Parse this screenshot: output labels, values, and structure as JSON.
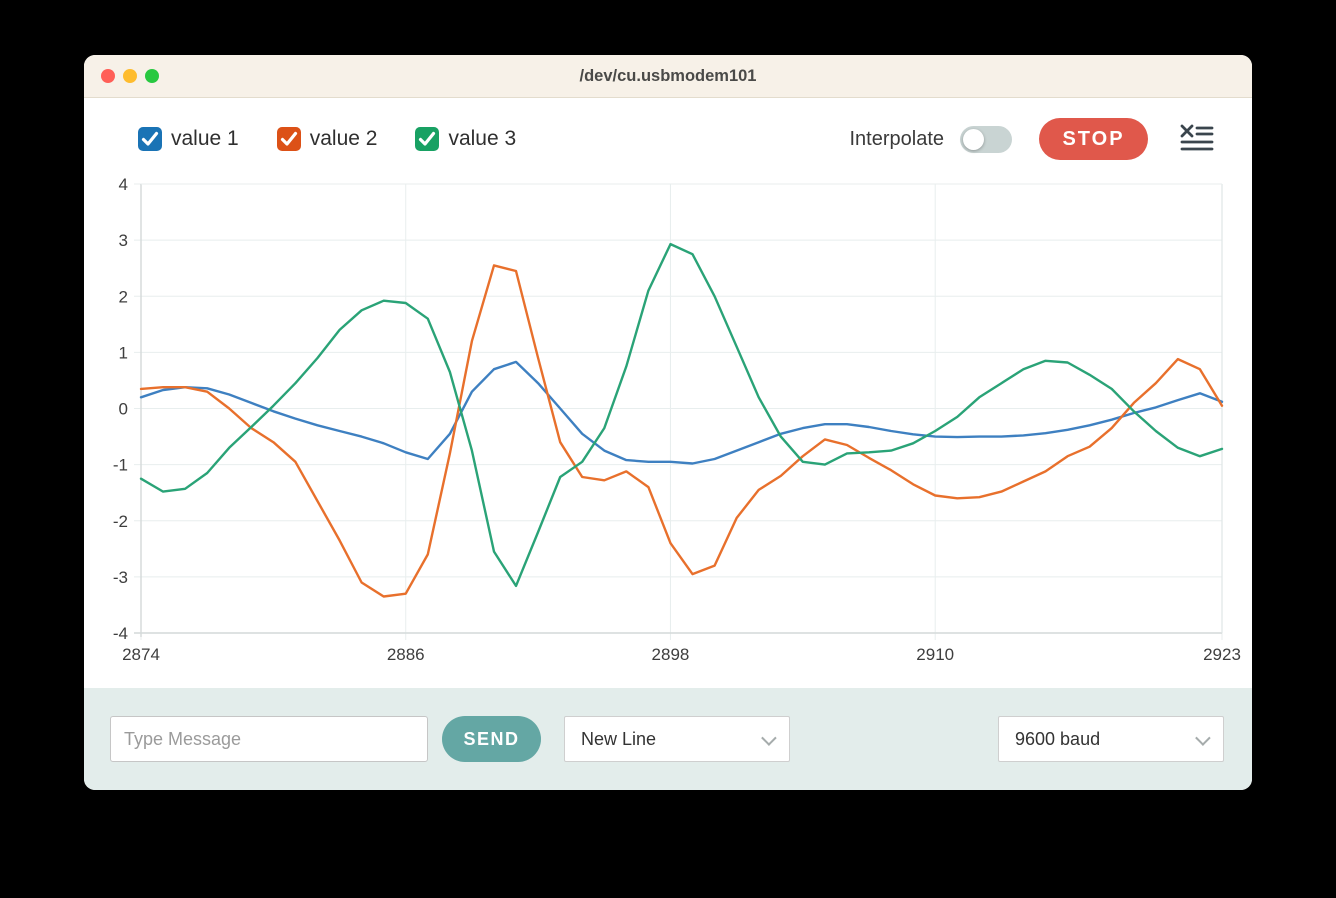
{
  "window": {
    "title": "/dev/cu.usbmodem101"
  },
  "titlebar_buttons": {
    "close": "close",
    "minimize": "minimize",
    "zoom": "zoom"
  },
  "legend": [
    {
      "label": "value 1",
      "checked": true,
      "color": "#1a73b5"
    },
    {
      "label": "value 2",
      "checked": true,
      "color": "#dc5117"
    },
    {
      "label": "value 3",
      "checked": true,
      "color": "#18a163"
    }
  ],
  "controls": {
    "interpolate_label": "Interpolate",
    "interpolate_on": false,
    "stop_label": "STOP",
    "clear_icon": "clear-console-icon"
  },
  "chart_data": {
    "type": "line",
    "title": "",
    "xlabel": "",
    "ylabel": "",
    "xlim": [
      2874,
      2923
    ],
    "ylim": [
      -4,
      4
    ],
    "x_ticks": [
      2874,
      2886,
      2898,
      2910,
      2923
    ],
    "y_ticks": [
      4,
      3,
      2,
      1,
      0,
      -1,
      -2,
      -3,
      -4
    ],
    "grid": true,
    "legend_position": "top-left",
    "x_start": 2874,
    "x_step": 1,
    "series": [
      {
        "name": "value 1",
        "color": "#3e80c1",
        "values": [
          0.2,
          0.33,
          0.38,
          0.36,
          0.25,
          0.1,
          -0.05,
          -0.18,
          -0.3,
          -0.4,
          -0.5,
          -0.62,
          -0.78,
          -0.9,
          -0.45,
          0.3,
          0.7,
          0.83,
          0.45,
          0.0,
          -0.45,
          -0.75,
          -0.92,
          -0.95,
          -0.95,
          -0.98,
          -0.9,
          -0.75,
          -0.6,
          -0.45,
          -0.35,
          -0.28,
          -0.28,
          -0.33,
          -0.4,
          -0.46,
          -0.5,
          -0.51,
          -0.5,
          -0.5,
          -0.48,
          -0.44,
          -0.38,
          -0.3,
          -0.2,
          -0.08,
          0.02,
          0.15,
          0.27,
          0.12
        ]
      },
      {
        "name": "value 2",
        "color": "#e8702c",
        "values": [
          0.35,
          0.38,
          0.38,
          0.3,
          0.0,
          -0.35,
          -0.6,
          -0.95,
          -1.65,
          -2.35,
          -3.1,
          -3.35,
          -3.3,
          -2.6,
          -0.8,
          1.2,
          2.55,
          2.45,
          0.9,
          -0.6,
          -1.22,
          -1.28,
          -1.12,
          -1.4,
          -2.4,
          -2.95,
          -2.8,
          -1.95,
          -1.45,
          -1.2,
          -0.85,
          -0.55,
          -0.65,
          -0.88,
          -1.1,
          -1.35,
          -1.55,
          -1.6,
          -1.58,
          -1.48,
          -1.3,
          -1.12,
          -0.85,
          -0.68,
          -0.35,
          0.1,
          0.45,
          0.88,
          0.7,
          0.05
        ]
      },
      {
        "name": "value 3",
        "color": "#2aa377",
        "values": [
          -1.25,
          -1.48,
          -1.43,
          -1.15,
          -0.7,
          -0.33,
          0.05,
          0.45,
          0.9,
          1.4,
          1.75,
          1.92,
          1.88,
          1.6,
          0.65,
          -0.75,
          -2.55,
          -3.16,
          -2.2,
          -1.22,
          -0.95,
          -0.35,
          0.75,
          2.1,
          2.93,
          2.75,
          2.0,
          1.1,
          0.2,
          -0.5,
          -0.95,
          -1.0,
          -0.8,
          -0.78,
          -0.75,
          -0.62,
          -0.4,
          -0.15,
          0.2,
          0.45,
          0.7,
          0.85,
          0.82,
          0.6,
          0.35,
          -0.05,
          -0.4,
          -0.7,
          -0.85,
          -0.72
        ]
      }
    ],
    "style": {
      "grid_color": "#e8eeee",
      "axis_color": "#d4d9d9",
      "tick_label_color": "#3e3e3e"
    }
  },
  "bottom": {
    "message_placeholder": "Type Message",
    "message_value": "",
    "send_label": "SEND",
    "line_ending_selected": "New Line",
    "baud_selected": "9600 baud"
  }
}
